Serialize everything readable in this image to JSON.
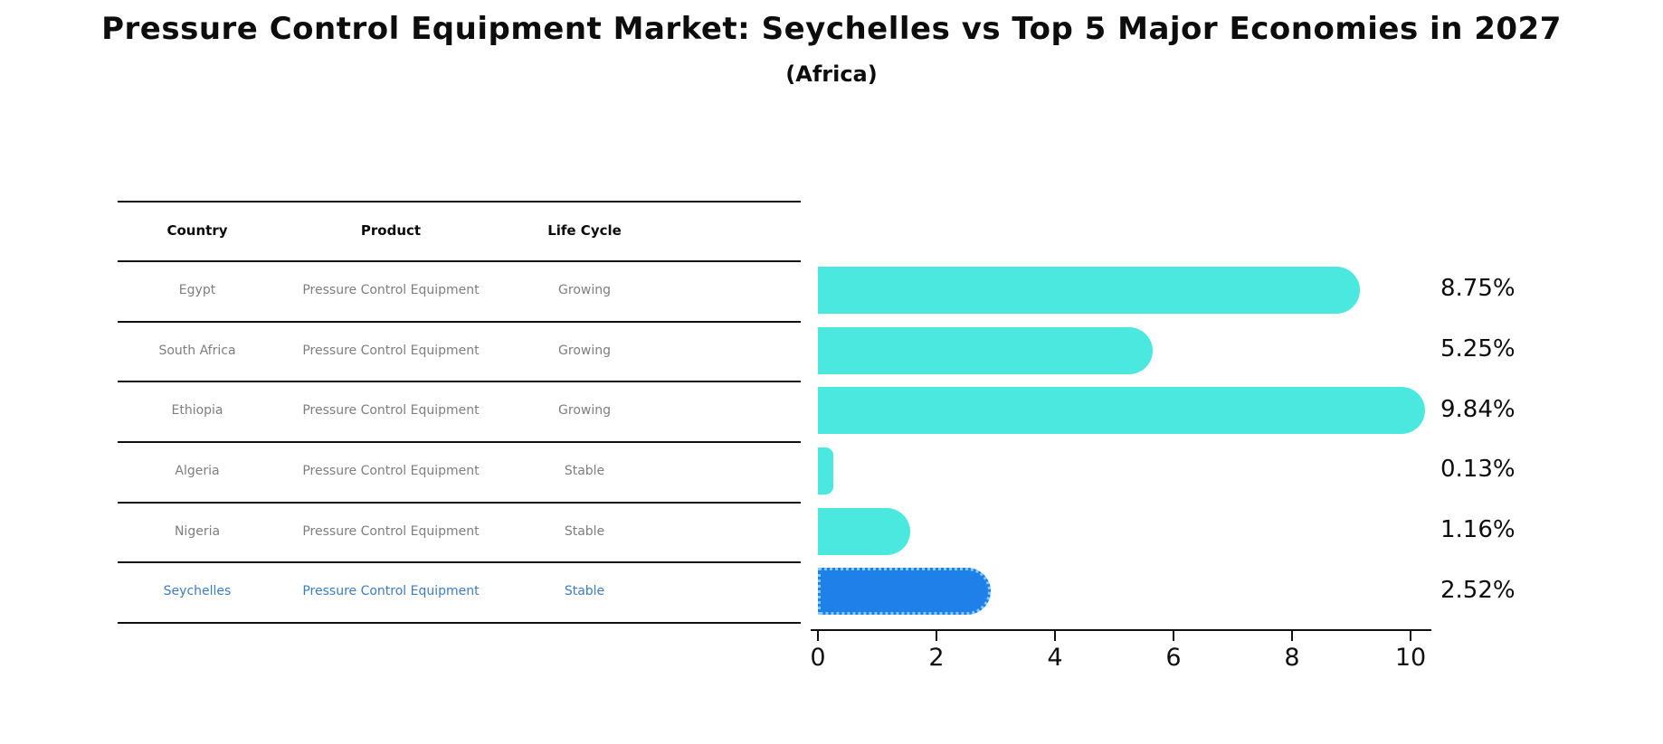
{
  "title": "Pressure Control Equipment Market: Seychelles vs Top 5 Major Economies in 2027",
  "subtitle": "(Africa)",
  "table": {
    "headers": [
      "Country",
      "Product",
      "Life Cycle"
    ],
    "rows": [
      {
        "country": "Egypt",
        "product": "Pressure Control Equipment",
        "life_cycle": "Growing",
        "highlighted": false
      },
      {
        "country": "South Africa",
        "product": "Pressure Control Equipment",
        "life_cycle": "Growing",
        "highlighted": false
      },
      {
        "country": "Ethiopia",
        "product": "Pressure Control Equipment",
        "life_cycle": "Growing",
        "highlighted": false
      },
      {
        "country": "Algeria",
        "product": "Pressure Control Equipment",
        "life_cycle": "Stable",
        "highlighted": false
      },
      {
        "country": "Nigeria",
        "product": "Pressure Control Equipment",
        "life_cycle": "Stable",
        "highlighted": false
      },
      {
        "country": "Seychelles",
        "product": "Pressure Control Equipment",
        "life_cycle": "Stable",
        "highlighted": true
      }
    ]
  },
  "chart_data": {
    "type": "bar",
    "orientation": "horizontal",
    "title": "Pressure Control Equipment Market: Seychelles vs Top 5 Major Economies in 2027 (Africa)",
    "categories": [
      "Egypt",
      "South Africa",
      "Ethiopia",
      "Algeria",
      "Nigeria",
      "Seychelles"
    ],
    "values": [
      8.75,
      5.25,
      9.84,
      0.13,
      1.16,
      2.52
    ],
    "value_labels": [
      "8.75%",
      "5.25%",
      "9.84%",
      "0.13%",
      "1.16%",
      "2.52%"
    ],
    "xlabel": "",
    "ylabel": "",
    "xlim": [
      0,
      10.5
    ],
    "x_ticks": [
      0,
      2,
      4,
      6,
      8,
      10
    ],
    "x_tick_labels": [
      "0",
      "2",
      "4",
      "6",
      "8",
      "10"
    ],
    "grid": false,
    "legend_position": "none",
    "highlight_category": "Seychelles",
    "colors": {
      "bar": "#4AE8DE",
      "highlight_bar": "#2080EA",
      "highlight_border": "#86CBF4",
      "highlight_text": "#3E7CC1",
      "row_text": "#7E7E7E",
      "axis": "#111111"
    }
  }
}
